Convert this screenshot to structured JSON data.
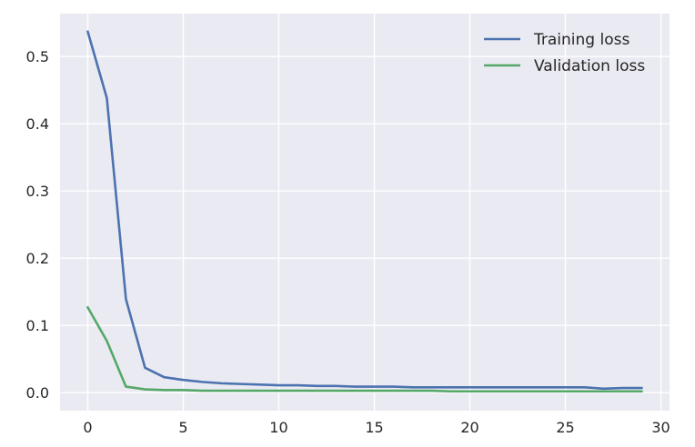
{
  "chart_data": {
    "type": "line",
    "x": [
      0,
      1,
      2,
      3,
      4,
      5,
      6,
      7,
      8,
      9,
      10,
      11,
      12,
      13,
      14,
      15,
      16,
      17,
      18,
      19,
      20,
      21,
      22,
      23,
      24,
      25,
      26,
      27,
      28,
      29
    ],
    "series": [
      {
        "name": "Training loss",
        "color": "#4c72b0",
        "values": [
          0.537,
          0.438,
          0.139,
          0.037,
          0.023,
          0.019,
          0.016,
          0.014,
          0.013,
          0.012,
          0.011,
          0.011,
          0.01,
          0.01,
          0.009,
          0.009,
          0.009,
          0.008,
          0.008,
          0.008,
          0.008,
          0.008,
          0.008,
          0.008,
          0.008,
          0.008,
          0.008,
          0.006,
          0.007,
          0.007
        ]
      },
      {
        "name": "Validation loss",
        "color": "#55a868",
        "values": [
          0.127,
          0.077,
          0.009,
          0.005,
          0.004,
          0.004,
          0.003,
          0.003,
          0.003,
          0.003,
          0.003,
          0.003,
          0.003,
          0.003,
          0.003,
          0.003,
          0.003,
          0.003,
          0.003,
          0.002,
          0.002,
          0.002,
          0.002,
          0.002,
          0.002,
          0.002,
          0.002,
          0.002,
          0.002,
          0.002
        ]
      }
    ],
    "xlim": [
      -1.45,
      30.45
    ],
    "ylim": [
      -0.0267,
      0.5637
    ],
    "x_ticks": [
      0,
      5,
      10,
      15,
      20,
      25,
      30
    ],
    "x_tick_labels": [
      "0",
      "5",
      "10",
      "15",
      "20",
      "25",
      "30"
    ],
    "y_ticks": [
      0.0,
      0.1,
      0.2,
      0.3,
      0.4,
      0.5
    ],
    "y_tick_labels": [
      "0.0",
      "0.1",
      "0.2",
      "0.3",
      "0.4",
      "0.5"
    ],
    "title": "",
    "xlabel": "",
    "ylabel": "",
    "grid": true,
    "legend_position": "top-right",
    "background_color": "#eaeaf2",
    "grid_color": "#ffffff"
  }
}
